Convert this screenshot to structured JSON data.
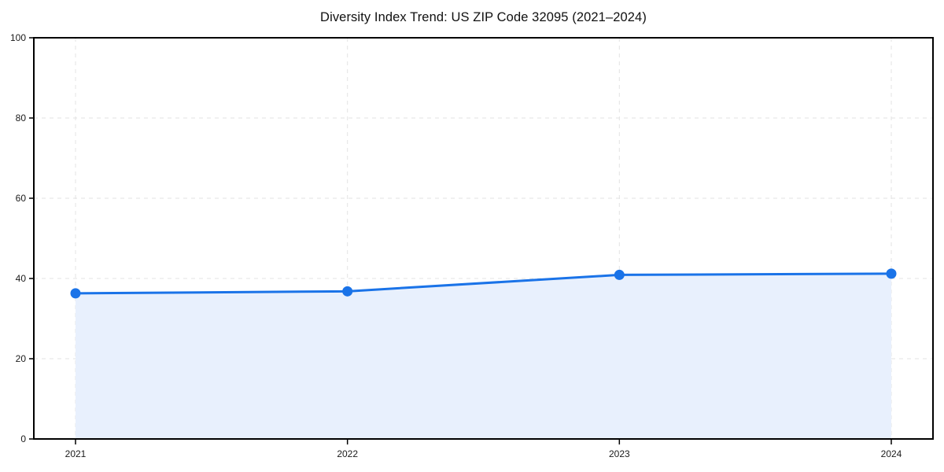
{
  "chart_data": {
    "type": "area",
    "title": "Diversity Index Trend: US ZIP Code 32095 (2021–2024)",
    "categories": [
      "2021",
      "2022",
      "2023",
      "2024"
    ],
    "series": [
      {
        "name": "Diversity Index",
        "values": [
          36.3,
          36.8,
          40.9,
          41.2
        ]
      }
    ],
    "xlabel": "",
    "ylabel": "",
    "ylim": [
      0,
      100
    ],
    "yticks": [
      0,
      20,
      40,
      60,
      80,
      100
    ],
    "grid": true,
    "grid_style": "dashed",
    "legend_position": "none",
    "colors": {
      "line": "#1a73e8",
      "marker": "#1a73e8",
      "area_fill": "#e8f0fd",
      "grid": "#e3e3e3",
      "spine": "#000000",
      "text": "#111111",
      "background": "#ffffff"
    }
  }
}
